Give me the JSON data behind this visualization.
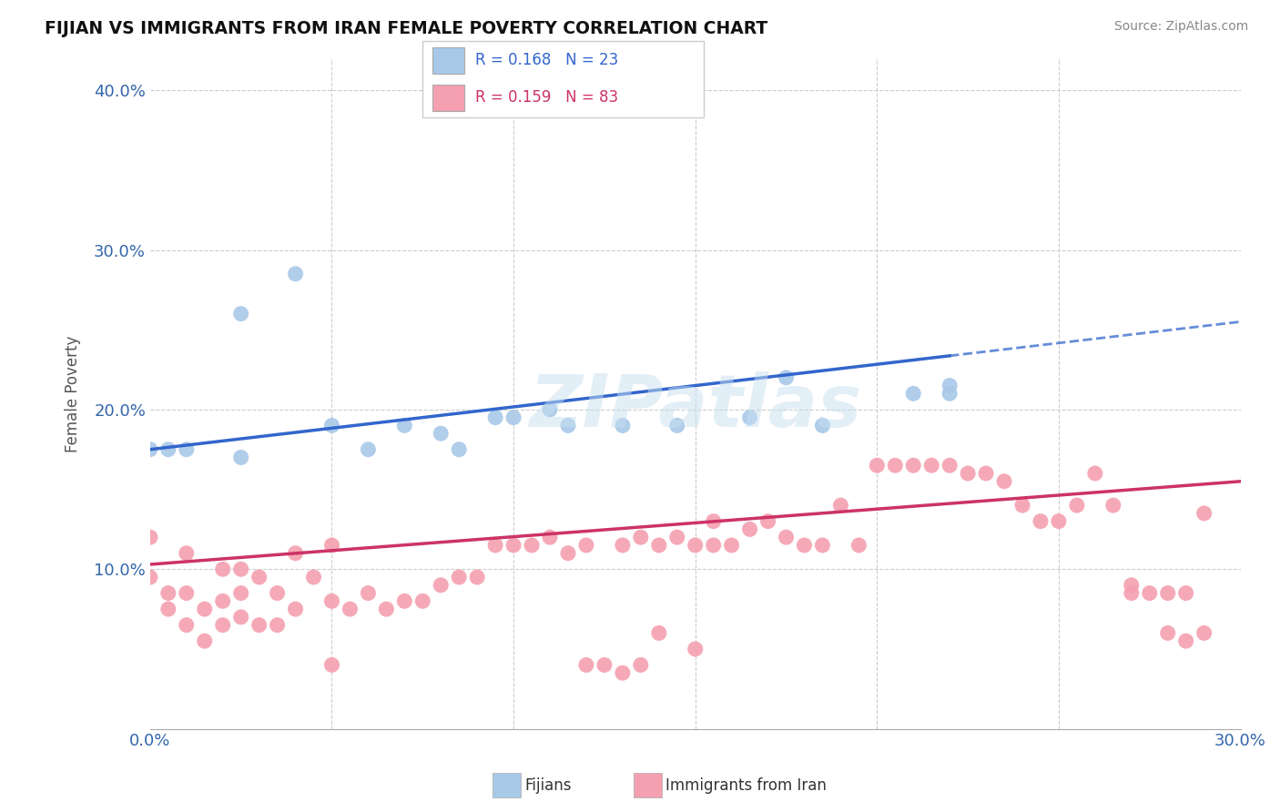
{
  "title": "FIJIAN VS IMMIGRANTS FROM IRAN FEMALE POVERTY CORRELATION CHART",
  "source": "Source: ZipAtlas.com",
  "ylabel": "Female Poverty",
  "xlim": [
    0.0,
    0.3
  ],
  "ylim": [
    0.0,
    0.42
  ],
  "xticks": [
    0.0,
    0.05,
    0.1,
    0.15,
    0.2,
    0.25,
    0.3
  ],
  "xticklabels": [
    "0.0%",
    "",
    "",
    "",
    "",
    "",
    "30.0%"
  ],
  "yticks": [
    0.0,
    0.1,
    0.2,
    0.3,
    0.4
  ],
  "yticklabels": [
    "",
    "10.0%",
    "20.0%",
    "30.0%",
    "40.0%"
  ],
  "fijian_color": "#A8C8E8",
  "iran_color": "#F4A0B0",
  "fijian_line_color": "#3366CC",
  "fijian_line_solid_end": 0.22,
  "iran_line_color": "#CC3366",
  "R_fijian": 0.168,
  "N_fijian": 23,
  "R_iran": 0.159,
  "N_iran": 83,
  "background_color": "#FFFFFF",
  "grid_color": "#CCCCCC",
  "watermark": "ZIPatlas",
  "fijian_line_x0": 0.0,
  "fijian_line_y0": 0.175,
  "fijian_line_x1": 0.3,
  "fijian_line_y1": 0.255,
  "iran_line_x0": 0.0,
  "iran_line_y0": 0.103,
  "iran_line_x1": 0.3,
  "iran_line_y1": 0.155,
  "fijian_x": [
    0.005,
    0.025,
    0.04,
    0.06,
    0.0,
    0.01,
    0.025,
    0.05,
    0.07,
    0.08,
    0.085,
    0.095,
    0.1,
    0.11,
    0.115,
    0.13,
    0.145,
    0.165,
    0.175,
    0.185,
    0.21,
    0.22,
    0.22
  ],
  "fijian_y": [
    0.175,
    0.26,
    0.285,
    0.175,
    0.175,
    0.175,
    0.17,
    0.19,
    0.19,
    0.185,
    0.175,
    0.195,
    0.195,
    0.2,
    0.19,
    0.19,
    0.19,
    0.195,
    0.22,
    0.19,
    0.21,
    0.215,
    0.21
  ],
  "iran_x": [
    0.0,
    0.0,
    0.005,
    0.005,
    0.01,
    0.01,
    0.01,
    0.015,
    0.015,
    0.02,
    0.02,
    0.02,
    0.025,
    0.025,
    0.025,
    0.03,
    0.03,
    0.035,
    0.035,
    0.04,
    0.04,
    0.045,
    0.05,
    0.05,
    0.055,
    0.06,
    0.065,
    0.07,
    0.075,
    0.08,
    0.085,
    0.09,
    0.095,
    0.1,
    0.105,
    0.11,
    0.115,
    0.12,
    0.13,
    0.135,
    0.14,
    0.145,
    0.15,
    0.155,
    0.155,
    0.16,
    0.165,
    0.17,
    0.175,
    0.18,
    0.185,
    0.19,
    0.195,
    0.2,
    0.205,
    0.21,
    0.215,
    0.22,
    0.225,
    0.23,
    0.235,
    0.24,
    0.245,
    0.25,
    0.255,
    0.26,
    0.265,
    0.27,
    0.275,
    0.28,
    0.285,
    0.29,
    0.29,
    0.27,
    0.12,
    0.125,
    0.13,
    0.135,
    0.14,
    0.28,
    0.285,
    0.15,
    0.05
  ],
  "iran_y": [
    0.12,
    0.095,
    0.085,
    0.075,
    0.065,
    0.085,
    0.11,
    0.055,
    0.075,
    0.065,
    0.08,
    0.1,
    0.07,
    0.085,
    0.1,
    0.065,
    0.095,
    0.065,
    0.085,
    0.075,
    0.11,
    0.095,
    0.08,
    0.115,
    0.075,
    0.085,
    0.075,
    0.08,
    0.08,
    0.09,
    0.095,
    0.095,
    0.115,
    0.115,
    0.115,
    0.12,
    0.11,
    0.115,
    0.115,
    0.12,
    0.115,
    0.12,
    0.115,
    0.115,
    0.13,
    0.115,
    0.125,
    0.13,
    0.12,
    0.115,
    0.115,
    0.14,
    0.115,
    0.165,
    0.165,
    0.165,
    0.165,
    0.165,
    0.16,
    0.16,
    0.155,
    0.14,
    0.13,
    0.13,
    0.14,
    0.16,
    0.14,
    0.085,
    0.085,
    0.085,
    0.085,
    0.06,
    0.135,
    0.09,
    0.04,
    0.04,
    0.035,
    0.04,
    0.06,
    0.06,
    0.055,
    0.05,
    0.04
  ]
}
